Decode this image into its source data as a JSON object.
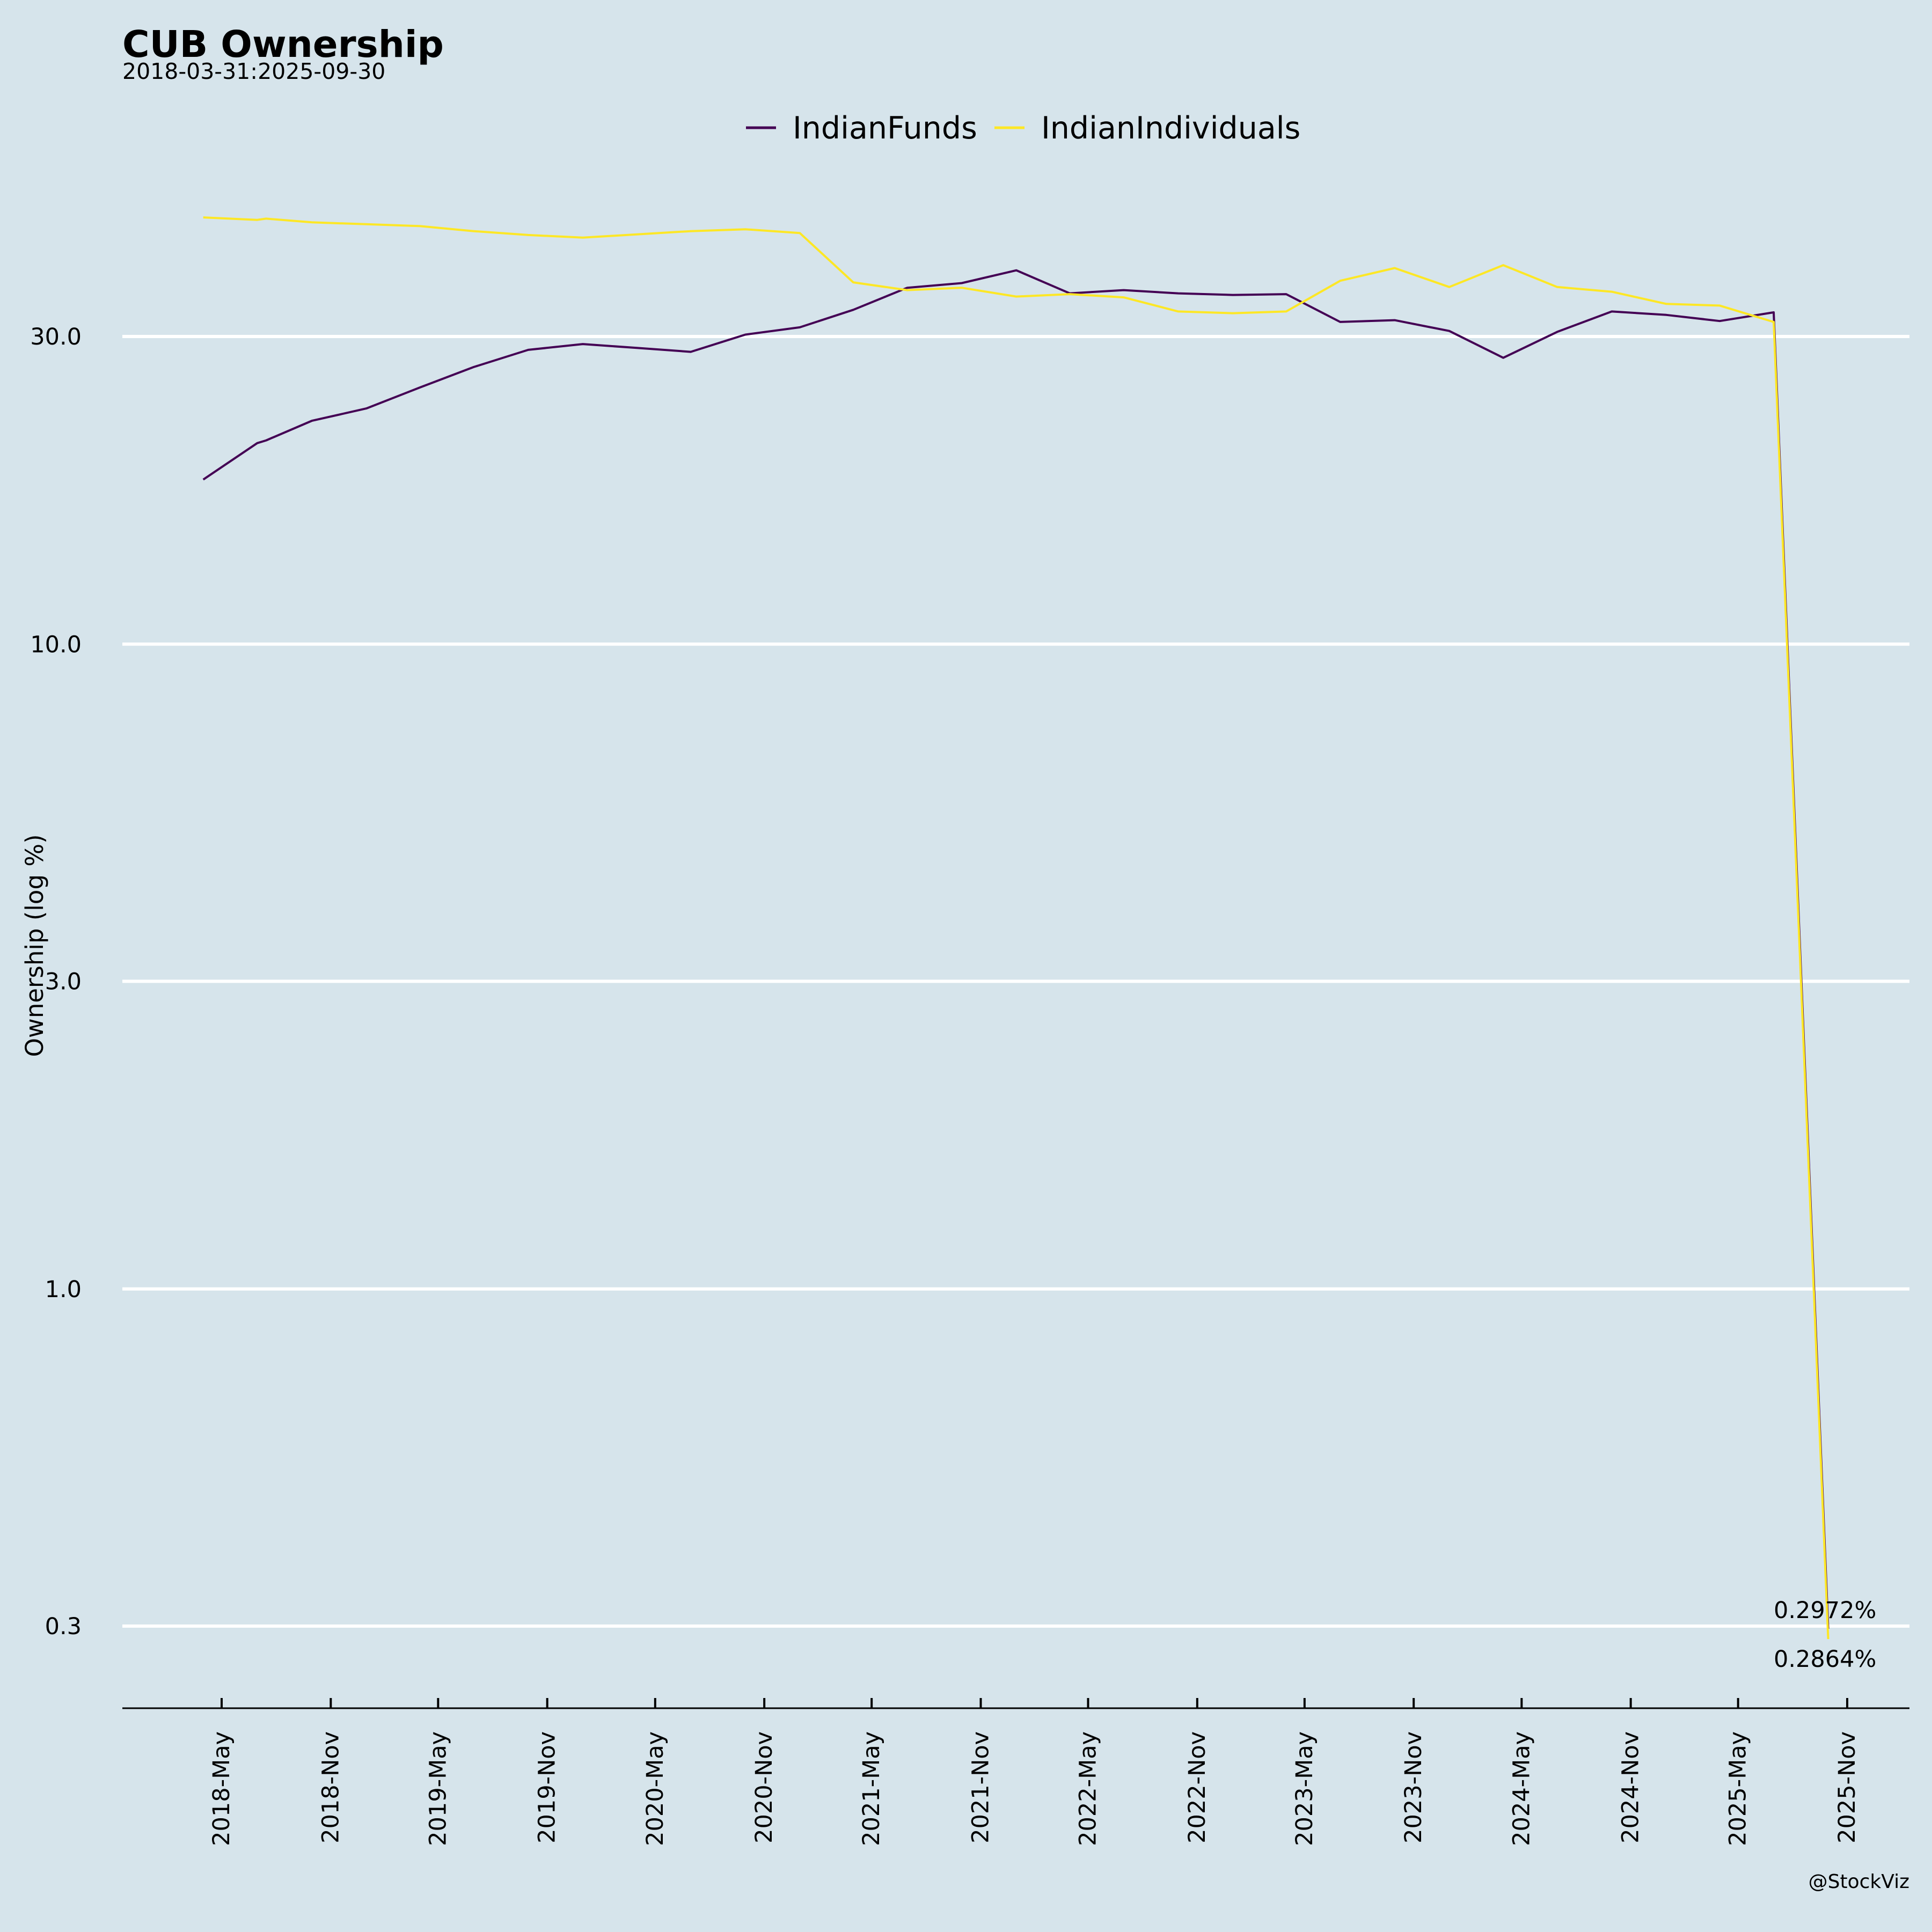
{
  "chart_data": {
    "type": "line",
    "title": "CUB Ownership",
    "subtitle": "2018-03-31:2025-09-30",
    "ylabel": "Ownership (log %)",
    "xlabel": "",
    "y_scale": "log",
    "ylim": [
      0.23,
      60
    ],
    "y_ticks": [
      0.3,
      1.0,
      3.0,
      10.0,
      30.0
    ],
    "y_tick_labels": [
      "0.3",
      "1.0",
      "3.0",
      "10.0",
      "30.0"
    ],
    "x_tick_dates": [
      "2018-05-01",
      "2018-11-01",
      "2019-05-01",
      "2019-11-01",
      "2020-05-01",
      "2020-11-01",
      "2021-05-01",
      "2021-11-01",
      "2022-05-01",
      "2022-11-01",
      "2023-05-01",
      "2023-11-01",
      "2024-05-01",
      "2024-11-01",
      "2025-05-01",
      "2025-11-01"
    ],
    "x_tick_labels": [
      "2018-May",
      "2018-Nov",
      "2019-May",
      "2019-Nov",
      "2020-May",
      "2020-Nov",
      "2021-May",
      "2021-Nov",
      "2022-May",
      "2022-Nov",
      "2023-May",
      "2023-Nov",
      "2024-May",
      "2024-Nov",
      "2025-May",
      "2025-Nov"
    ],
    "grid": "horizontal",
    "legend_position": "top-center",
    "series": [
      {
        "name": "IndianFunds",
        "color": "#440154",
        "points": [
          [
            "2018-03-31",
            18.0
          ],
          [
            "2018-06-30",
            20.5
          ],
          [
            "2018-07-15",
            20.7
          ],
          [
            "2018-09-30",
            22.2
          ],
          [
            "2018-12-31",
            23.2
          ],
          [
            "2019-03-31",
            25.0
          ],
          [
            "2019-06-30",
            26.9
          ],
          [
            "2019-09-30",
            28.6
          ],
          [
            "2019-12-31",
            29.2
          ],
          [
            "2020-03-31",
            28.8
          ],
          [
            "2020-06-30",
            28.4
          ],
          [
            "2020-09-30",
            30.2
          ],
          [
            "2020-12-31",
            31.0
          ],
          [
            "2021-03-31",
            33.0
          ],
          [
            "2021-06-30",
            35.7
          ],
          [
            "2021-09-30",
            36.3
          ],
          [
            "2021-12-31",
            38.0
          ],
          [
            "2022-03-31",
            35.0
          ],
          [
            "2022-06-30",
            35.4
          ],
          [
            "2022-09-30",
            35.0
          ],
          [
            "2022-12-31",
            34.8
          ],
          [
            "2023-03-31",
            34.9
          ],
          [
            "2023-06-30",
            31.6
          ],
          [
            "2023-09-30",
            31.8
          ],
          [
            "2023-12-31",
            30.6
          ],
          [
            "2024-03-31",
            27.8
          ],
          [
            "2024-06-30",
            30.5
          ],
          [
            "2024-09-30",
            32.8
          ],
          [
            "2024-12-31",
            32.4
          ],
          [
            "2025-03-31",
            31.7
          ],
          [
            "2025-06-30",
            32.7
          ],
          [
            "2025-09-30",
            0.2972
          ]
        ]
      },
      {
        "name": "IndianIndividuals",
        "color": "#fde725",
        "points": [
          [
            "2018-03-31",
            45.9
          ],
          [
            "2018-06-30",
            45.5
          ],
          [
            "2018-07-15",
            45.7
          ],
          [
            "2018-09-30",
            45.1
          ],
          [
            "2018-12-31",
            44.8
          ],
          [
            "2019-03-31",
            44.5
          ],
          [
            "2019-06-30",
            43.7
          ],
          [
            "2019-09-30",
            43.1
          ],
          [
            "2019-12-31",
            42.7
          ],
          [
            "2020-03-31",
            43.2
          ],
          [
            "2020-06-30",
            43.7
          ],
          [
            "2020-09-30",
            44.0
          ],
          [
            "2020-12-31",
            43.4
          ],
          [
            "2021-03-31",
            36.4
          ],
          [
            "2021-06-30",
            35.4
          ],
          [
            "2021-09-30",
            35.7
          ],
          [
            "2021-12-31",
            34.6
          ],
          [
            "2022-03-31",
            34.9
          ],
          [
            "2022-06-30",
            34.5
          ],
          [
            "2022-09-30",
            32.8
          ],
          [
            "2022-12-31",
            32.6
          ],
          [
            "2023-03-31",
            32.8
          ],
          [
            "2023-06-30",
            36.6
          ],
          [
            "2023-09-30",
            38.3
          ],
          [
            "2023-12-31",
            35.8
          ],
          [
            "2024-03-31",
            38.7
          ],
          [
            "2024-06-30",
            35.8
          ],
          [
            "2024-09-30",
            35.2
          ],
          [
            "2024-12-31",
            33.7
          ],
          [
            "2025-03-31",
            33.5
          ],
          [
            "2025-06-30",
            31.6
          ],
          [
            "2025-09-30",
            0.2864
          ]
        ]
      }
    ],
    "end_labels": [
      "0.2972%",
      "0.2864%"
    ],
    "credit": "@StockViz"
  }
}
